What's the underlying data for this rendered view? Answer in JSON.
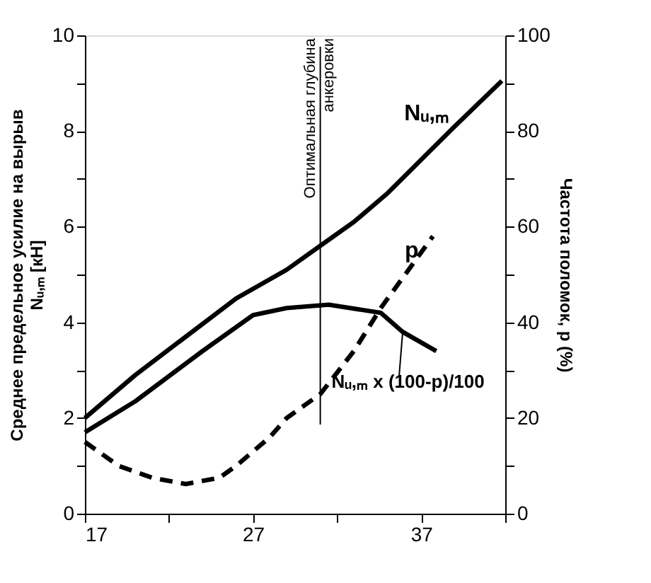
{
  "chart_data": {
    "type": "line",
    "ylabel": [
      "Среднее предельное усилие на вырыв",
      "Nᵤ,ₘ [кН]"
    ],
    "y2label": "Частота поломок, p (%)",
    "xlim": [
      17,
      42
    ],
    "xticks": [
      17,
      {
        "value": 22,
        "label": null
      },
      27,
      {
        "value": 32,
        "label": null
      },
      37,
      {
        "value": 42,
        "label": null
      }
    ],
    "ylim": [
      0,
      10
    ],
    "yticks": [
      0,
      {
        "value": 1,
        "label": null
      },
      2,
      {
        "value": 3,
        "label": null
      },
      4,
      {
        "value": 5,
        "label": null
      },
      6,
      {
        "value": 7,
        "label": null
      },
      8,
      {
        "value": 9,
        "label": null
      },
      10
    ],
    "y2lim": [
      0,
      100
    ],
    "y2ticks": [
      0,
      {
        "value": 10,
        "label": null
      },
      20,
      {
        "value": 30,
        "label": null
      },
      40,
      {
        "value": 50,
        "label": null
      },
      60,
      {
        "value": 70,
        "label": null
      },
      80,
      {
        "value": 90,
        "label": null
      },
      100
    ],
    "grid": false,
    "marker": "none",
    "series": [
      {
        "name": "Nᵤ,ₘ",
        "color": "#000000",
        "line_style": "solid",
        "x": [
          17,
          20,
          23,
          26,
          29,
          31,
          33,
          35,
          37,
          39,
          41.8
        ],
        "values": [
          2.0,
          2.9,
          3.7,
          4.5,
          5.1,
          5.6,
          6.1,
          6.7,
          7.4,
          8.1,
          9.05
        ]
      },
      {
        "name": "p",
        "color": "#000000",
        "line_style": "dashed",
        "axis": "y2",
        "x": [
          17,
          19,
          21,
          23,
          25,
          26,
          28,
          29,
          31,
          33,
          34.6,
          37.7
        ],
        "values": [
          15,
          10,
          7.5,
          6.2,
          7.5,
          10,
          16,
          20,
          25,
          34,
          43,
          58
        ]
      },
      {
        "name": "Nᵤ,ₘ x (100-p)/100",
        "color": "#000000",
        "line_style": "solid",
        "x": [
          17,
          20,
          24,
          27,
          29,
          31.5,
          34.6,
          35.9,
          37.9
        ],
        "values": [
          1.7,
          2.35,
          3.4,
          4.15,
          4.3,
          4.37,
          4.2,
          3.8,
          3.4
        ]
      }
    ],
    "ref_lines": [
      {
        "axis": "x",
        "value": 31,
        "label": [
          "Оптимальная глубина",
          "анкеровки"
        ],
        "color": "#000000",
        "line_style": "solid"
      }
    ]
  }
}
